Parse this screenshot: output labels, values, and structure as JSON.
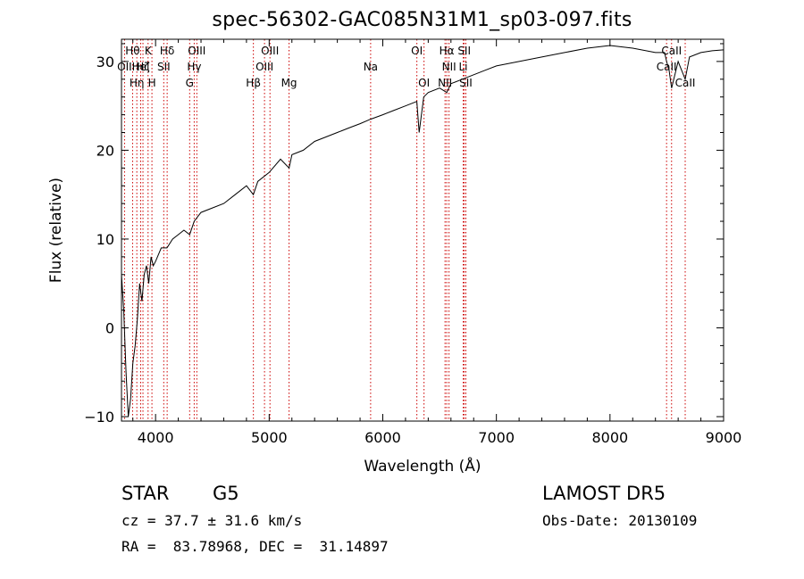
{
  "chart_data": {
    "type": "line",
    "title": "spec-56302-GAC085N31M1_sp03-097.fits",
    "xlabel": "Wavelength (Å)",
    "ylabel": "Flux (relative)",
    "xlim": [
      3700,
      9000
    ],
    "ylim": [
      -10.5,
      32.5
    ],
    "x_ticks": [
      4000,
      5000,
      6000,
      7000,
      8000,
      9000
    ],
    "y_ticks": [
      -10,
      0,
      10,
      20,
      30
    ],
    "x_tick_labels": [
      "4000",
      "5000",
      "6000",
      "7000",
      "8000",
      "9000"
    ],
    "y_tick_labels": [
      "−10",
      "0",
      "10",
      "20",
      "30"
    ],
    "grid": false,
    "line_color": "#000000",
    "marker_color": "#cc0000",
    "series": [
      {
        "x": [
          3700,
          3720,
          3740,
          3760,
          3780,
          3800,
          3820,
          3840,
          3860,
          3880,
          3900,
          3920,
          3940,
          3960,
          3980,
          4000,
          4050,
          4100,
          4150,
          4200,
          4250,
          4300,
          4340,
          4400,
          4500,
          4600,
          4700,
          4800,
          4861,
          4900,
          5000,
          5100,
          5175,
          5200,
          5300,
          5400,
          5500,
          5600,
          5700,
          5800,
          5893,
          6000,
          6100,
          6200,
          6300,
          6320,
          6360,
          6400,
          6500,
          6563,
          6600,
          6700,
          6800,
          6900,
          7000,
          7200,
          7400,
          7600,
          7800,
          8000,
          8200,
          8400,
          8480,
          8498,
          8520,
          8542,
          8600,
          8662,
          8700,
          8800,
          8900,
          9000
        ],
        "y": [
          6,
          2,
          -5,
          -10,
          -8,
          -4,
          -2,
          1,
          5,
          3,
          6,
          7,
          5,
          8,
          7,
          7.5,
          9,
          9,
          10,
          10.5,
          11,
          10.5,
          12,
          13,
          13.5,
          14,
          15,
          16,
          15,
          16.5,
          17.5,
          19,
          18,
          19.5,
          20,
          21,
          21.5,
          22,
          22.5,
          23,
          23.5,
          24,
          24.5,
          25,
          25.5,
          22,
          26,
          26.5,
          27,
          26.5,
          27.5,
          28,
          28.5,
          29,
          29.5,
          30,
          30.5,
          31,
          31.5,
          31.8,
          31.5,
          31,
          31,
          30,
          29,
          27,
          30,
          28,
          30.5,
          31,
          31.2,
          31.3
        ]
      }
    ],
    "lines": [
      {
        "x": 3727,
        "label": "OII",
        "row": 2
      },
      {
        "x": 3798,
        "label": "Hθ",
        "row": 1
      },
      {
        "x": 3835,
        "label": "Hη",
        "row": 3
      },
      {
        "x": 3869,
        "label": "Hel",
        "row": 2
      },
      {
        "x": 3889,
        "label": "Hζ",
        "row": 2
      },
      {
        "x": 3934,
        "label": "K",
        "row": 1
      },
      {
        "x": 3968,
        "label": "H",
        "row": 3
      },
      {
        "x": 4072,
        "label": "SII",
        "row": 2
      },
      {
        "x": 4102,
        "label": "Hδ",
        "row": 1
      },
      {
        "x": 4300,
        "label": "G",
        "row": 3
      },
      {
        "x": 4340,
        "label": "Hγ",
        "row": 2
      },
      {
        "x": 4363,
        "label": "OIII",
        "row": 1
      },
      {
        "x": 4861,
        "label": "Hβ",
        "row": 3
      },
      {
        "x": 4959,
        "label": "OIII",
        "row": 2
      },
      {
        "x": 5007,
        "label": "OIII",
        "row": 1
      },
      {
        "x": 5175,
        "label": "Mg",
        "row": 3
      },
      {
        "x": 5893,
        "label": "Na",
        "row": 2
      },
      {
        "x": 6300,
        "label": "OI",
        "row": 1
      },
      {
        "x": 6363,
        "label": "OI",
        "row": 3
      },
      {
        "x": 6548,
        "label": "NII",
        "row": 3
      },
      {
        "x": 6563,
        "label": "Hα",
        "row": 1
      },
      {
        "x": 6583,
        "label": "NII",
        "row": 2
      },
      {
        "x": 6708,
        "label": "Li",
        "row": 2
      },
      {
        "x": 6717,
        "label": "SII",
        "row": 1
      },
      {
        "x": 6731,
        "label": "SII",
        "row": 3
      },
      {
        "x": 8498,
        "label": "CaII",
        "row": 2
      },
      {
        "x": 8542,
        "label": "CaII",
        "row": 1
      },
      {
        "x": 8662,
        "label": "CaII",
        "row": 3
      }
    ]
  },
  "info": {
    "object_class": "STAR",
    "subclass": "G5",
    "survey": "LAMOST DR5",
    "redshift": "cz = 37.7 ± 31.6 km/s",
    "obs_date": "Obs-Date: 20130109",
    "coords": "RA =  83.78968, DEC =  31.14897"
  }
}
